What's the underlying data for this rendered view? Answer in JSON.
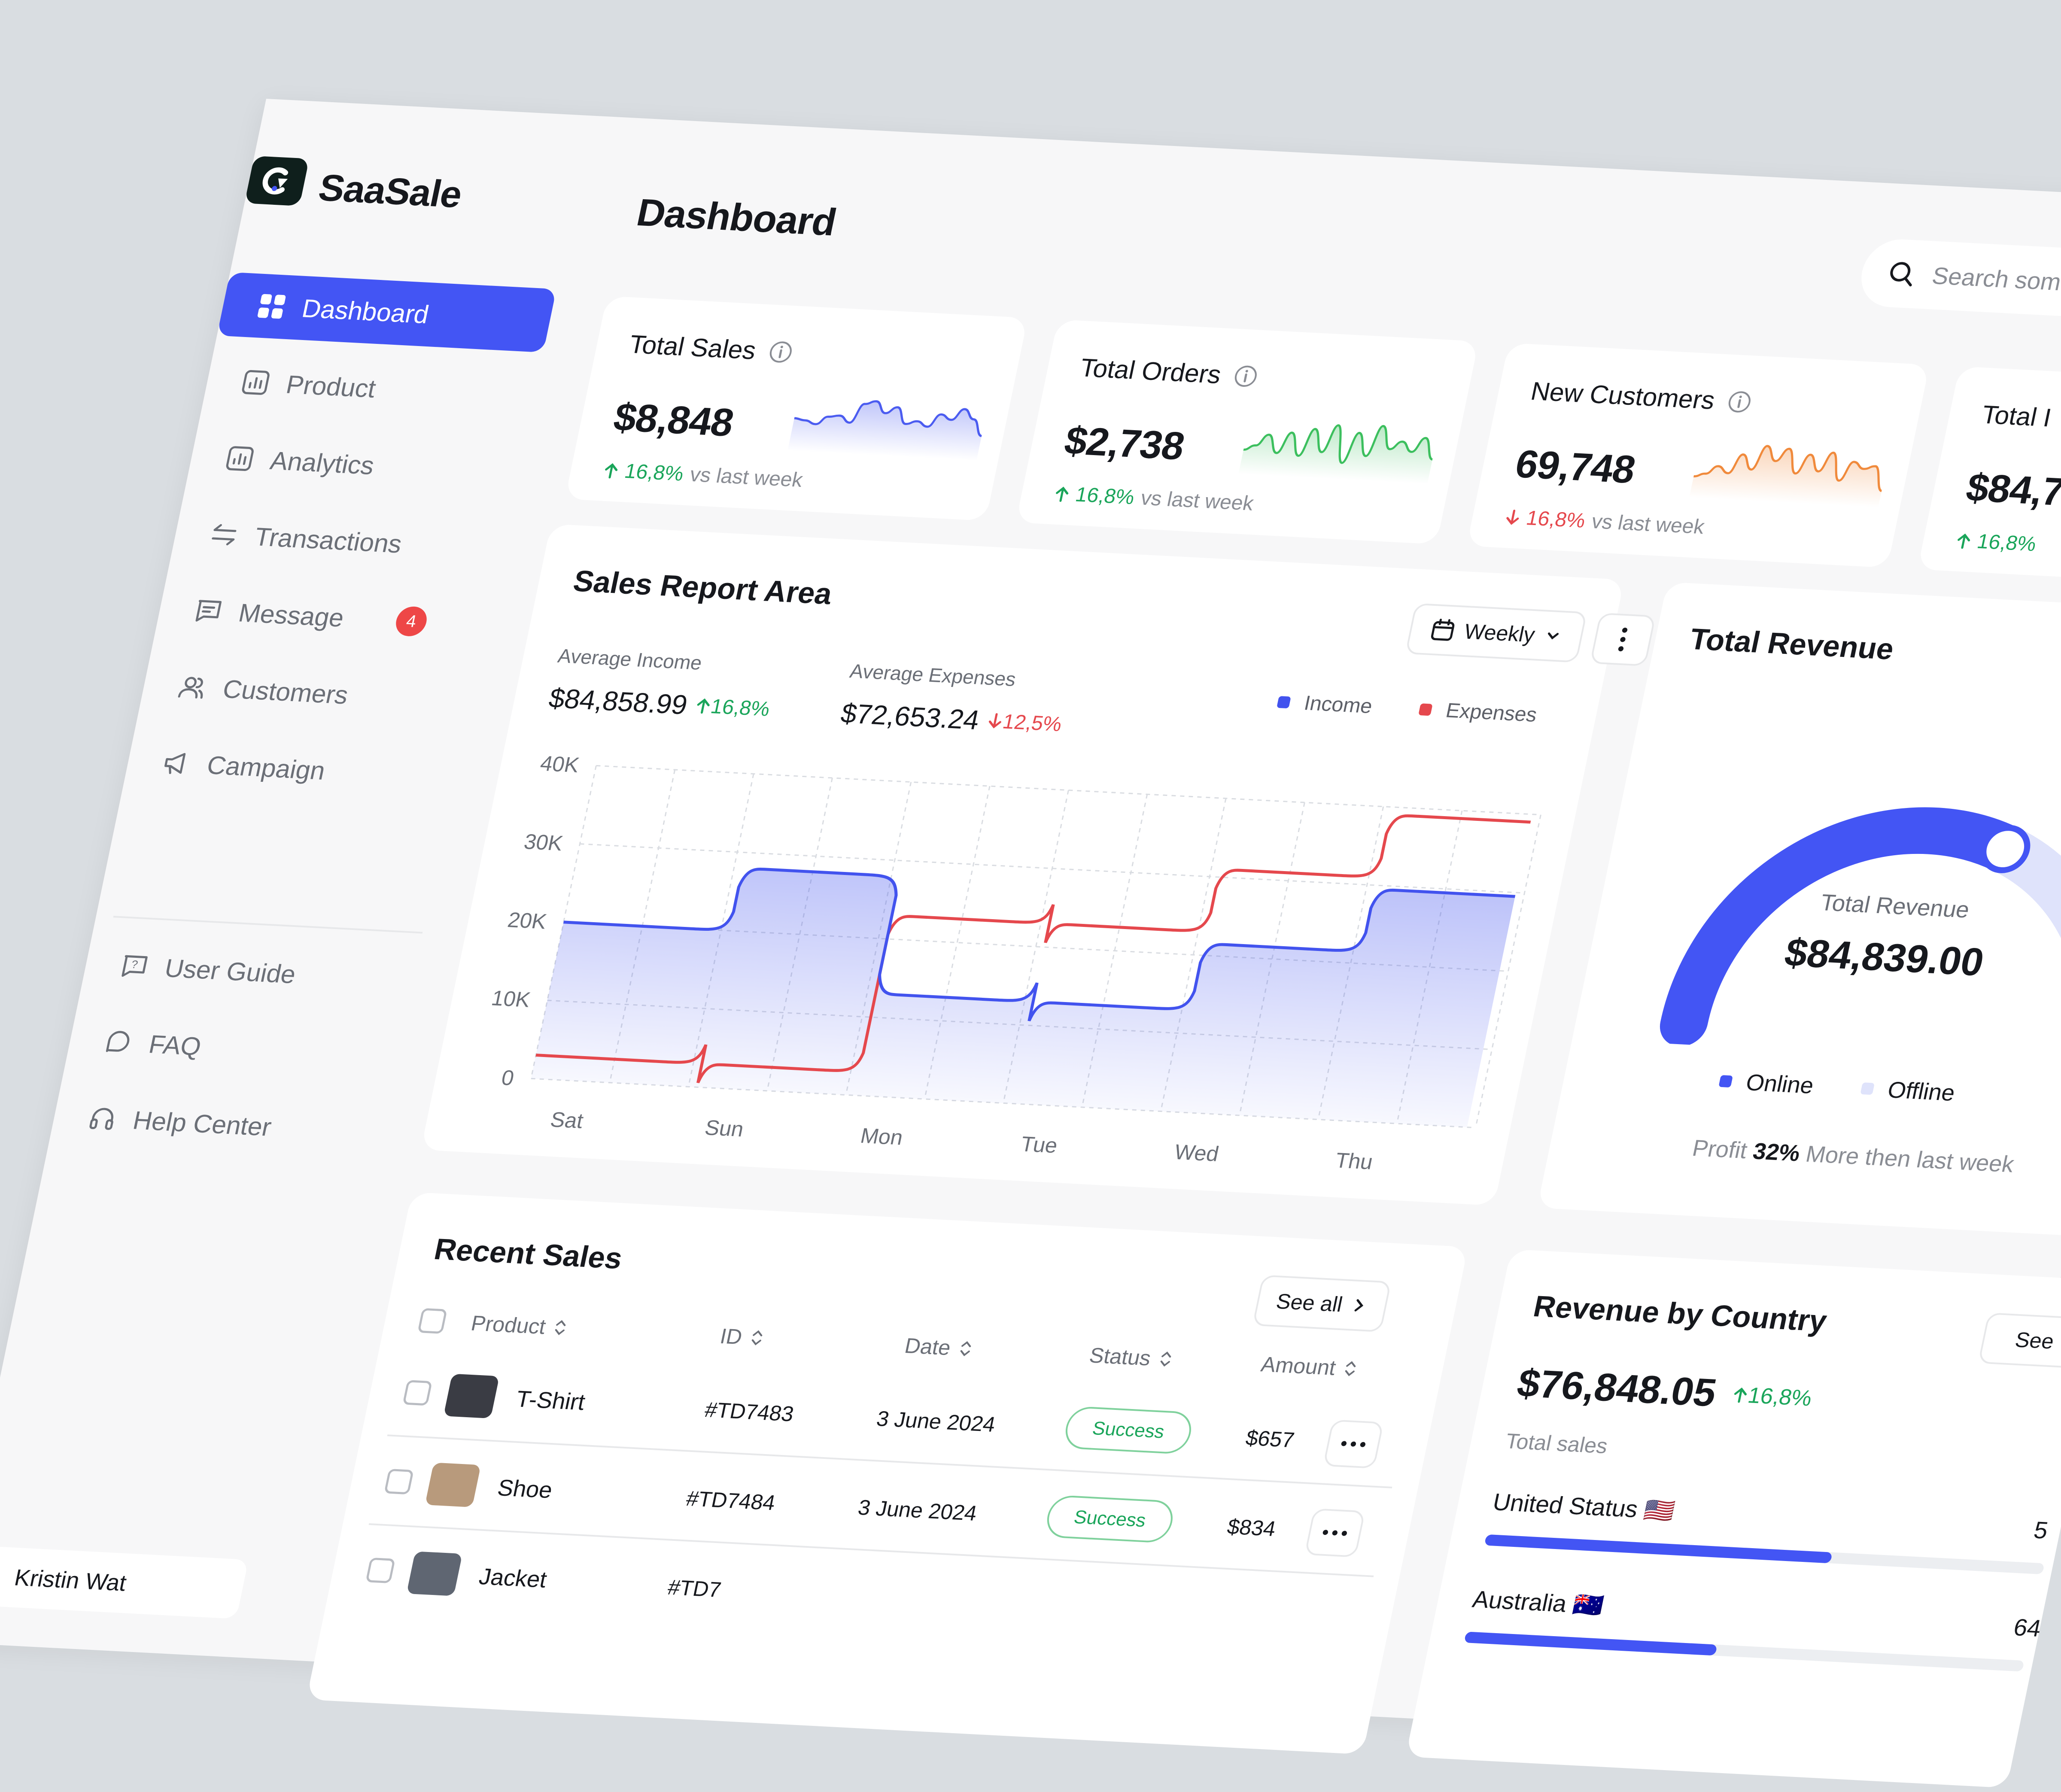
{
  "brand": {
    "name": "SaaSale"
  },
  "sidebar": {
    "items": [
      {
        "label": "Dashboard",
        "icon": "grid-icon"
      },
      {
        "label": "Product",
        "icon": "chart-icon"
      },
      {
        "label": "Analytics",
        "icon": "chart-icon"
      },
      {
        "label": "Transactions",
        "icon": "transfer-icon"
      },
      {
        "label": "Message",
        "icon": "message-icon",
        "badge": "4"
      },
      {
        "label": "Customers",
        "icon": "users-icon"
      },
      {
        "label": "Campaign",
        "icon": "megaphone-icon"
      }
    ],
    "support": [
      {
        "label": "User Guide",
        "icon": "help-icon"
      },
      {
        "label": "FAQ",
        "icon": "chat-icon"
      },
      {
        "label": "Help Center",
        "icon": "headset-icon"
      }
    ],
    "user": {
      "name": "Kristin Wat"
    }
  },
  "header": {
    "title": "Dashboard",
    "search_placeholder": "Search something"
  },
  "stats": [
    {
      "title": "Total Sales",
      "value": "$8,848",
      "delta": "16,8%",
      "trend": "up",
      "suffix": "vs last week",
      "color": "#4b5cf0"
    },
    {
      "title": "Total Orders",
      "value": "$2,738",
      "delta": "16,8%",
      "trend": "up",
      "suffix": "vs last week",
      "color": "#3cbf5e"
    },
    {
      "title": "New Customers",
      "value": "69,748",
      "delta": "16,8%",
      "trend": "down",
      "suffix": "vs last week",
      "color": "#f08a3c"
    },
    {
      "title": "Total I",
      "value": "$84,7",
      "delta": "16,8%",
      "trend": "up",
      "suffix": "",
      "color": "#4b5cf0"
    }
  ],
  "sales_report": {
    "title": "Sales Report Area",
    "period": "Weekly",
    "avg_income_label": "Average Income",
    "avg_income": "$84,858.99",
    "avg_income_delta": "16,8%",
    "avg_expenses_label": "Average Expenses",
    "avg_expenses": "$72,653.24",
    "avg_expenses_delta": "12,5%",
    "legend_income": "Income",
    "legend_expenses": "Expenses",
    "colors": {
      "income": "#4253ee",
      "expenses": "#e5484d"
    }
  },
  "chart_data": {
    "type": "line",
    "x": [
      "Sat",
      "Sun",
      "Mon",
      "Tue",
      "Wed",
      "Thu"
    ],
    "y_ticks": [
      "40K",
      "30K",
      "20K",
      "10K",
      "0"
    ],
    "ylim": [
      0,
      40000
    ],
    "grid": true,
    "legend": "top-right",
    "series": [
      {
        "name": "Income",
        "values": [
          20000,
          28000,
          13000,
          13000,
          21500,
          29500
        ]
      },
      {
        "name": "Expenses",
        "values": [
          3000,
          3000,
          23000,
          23000,
          31000,
          39000
        ]
      }
    ]
  },
  "revenue": {
    "title": "Total Revenue",
    "center_label": "Total Revenue",
    "value": "$84,839.00",
    "legend_online": "Online",
    "legend_offline": "Offline",
    "profit_prefix": "Profit",
    "profit_value": "32%",
    "profit_suffix": "More then last week",
    "online_share": 0.62,
    "colors": {
      "online": "#4355f4",
      "offline": "#dfe3fb"
    }
  },
  "recent_sales": {
    "title": "Recent Sales",
    "see_all": "See all",
    "columns": [
      "Product",
      "ID",
      "Date",
      "Status",
      "Amount"
    ],
    "rows": [
      {
        "product": "T-Shirt",
        "id": "#TD7483",
        "date": "3 June 2024",
        "status": "Success",
        "amount": "$657"
      },
      {
        "product": "Shoe",
        "id": "#TD7484",
        "date": "3 June 2024",
        "status": "Success",
        "amount": "$834"
      },
      {
        "product": "Jacket",
        "id": "#TD7",
        "date": "",
        "status": "",
        "amount": ""
      }
    ]
  },
  "country": {
    "title": "Revenue by Country",
    "see_all": "See",
    "value": "$76,848.05",
    "delta": "16,8%",
    "label": "Total sales",
    "items": [
      {
        "name": "United Status 🇺🇸",
        "amount": "5",
        "share": 0.62
      },
      {
        "name": "Australia 🇦🇺",
        "amount": "64",
        "share": 0.45
      }
    ]
  }
}
